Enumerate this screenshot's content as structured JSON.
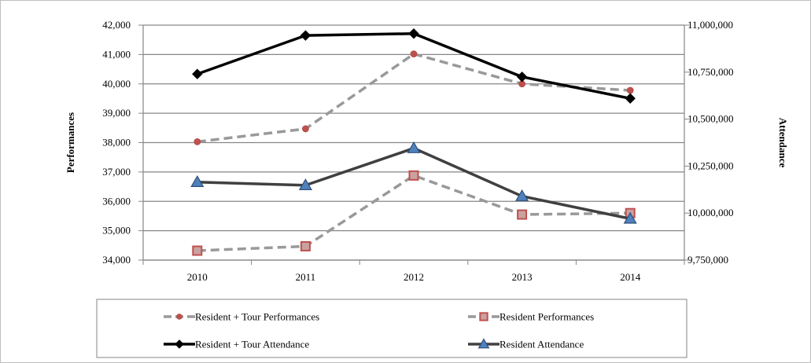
{
  "chart_data": {
    "type": "line",
    "title": "",
    "categories": [
      "2010",
      "2011",
      "2012",
      "2013",
      "2014"
    ],
    "y_left": {
      "label": "Performances",
      "range": [
        34000,
        42000
      ],
      "ticks": [
        34000,
        35000,
        36000,
        37000,
        38000,
        39000,
        40000,
        41000,
        42000
      ],
      "tick_labels": [
        "34,000",
        "35,000",
        "36,000",
        "37,000",
        "38,000",
        "39,000",
        "40,000",
        "41,000",
        "42,000"
      ]
    },
    "y_right": {
      "label": "Attendance",
      "range": [
        9750000,
        11000000
      ],
      "ticks": [
        9750000,
        10000000,
        10250000,
        10500000,
        10750000,
        11000000
      ],
      "tick_labels": [
        "9,750,000",
        "10,000,000",
        "10,250,000",
        "10,500,000",
        "10,750,000",
        "11,000,000"
      ]
    },
    "grid": true,
    "legend_position": "bottom",
    "series": [
      {
        "name": "Resident + Tour Performances",
        "axis": "left",
        "values": [
          38030,
          38470,
          41020,
          40000,
          39780
        ],
        "color": "#999999",
        "line_style": "dashed",
        "marker": "circle",
        "marker_color": "#c0504d"
      },
      {
        "name": "Resident Performances",
        "axis": "left",
        "values": [
          34320,
          34470,
          36880,
          35550,
          35600
        ],
        "color": "#999999",
        "line_style": "dashed",
        "marker": "square",
        "marker_color": "#c0504d"
      },
      {
        "name": "Resident + Tour Attendance",
        "axis": "right",
        "values": [
          10740000,
          10945000,
          10955000,
          10725000,
          10610000
        ],
        "color": "#000000",
        "line_style": "solid",
        "marker": "diamond",
        "marker_color": "#000000"
      },
      {
        "name": "Resident Attendance",
        "axis": "right",
        "values": [
          10165000,
          10148000,
          10345000,
          10090000,
          9970000
        ],
        "color": "#404040",
        "line_style": "solid",
        "marker": "triangle",
        "marker_color": "#4f81bd"
      }
    ]
  }
}
